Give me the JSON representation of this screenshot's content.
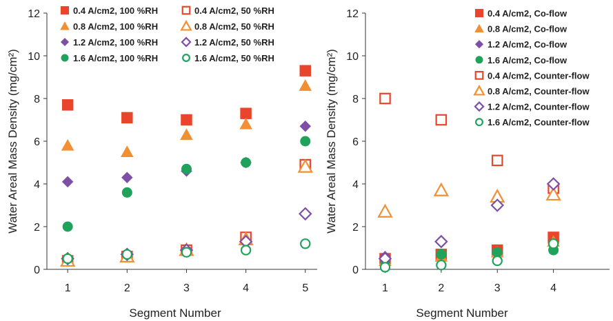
{
  "chart_data": [
    {
      "type": "scatter",
      "xlabel": "Segment Number",
      "ylabel": "Water Areal Mass Density (mg/cm²)",
      "xlim": [
        0.65,
        5.2
      ],
      "ylim": [
        0,
        12
      ],
      "xticks": [
        "1",
        "2",
        "3",
        "4",
        "5"
      ],
      "yticks": [
        "0",
        "2",
        "4",
        "6",
        "8",
        "10",
        "12"
      ],
      "legend_position": "top",
      "series": [
        {
          "name": "0.4 A/cm2, 100 %RH",
          "marker": "square",
          "filled": true,
          "color": "#e8452c",
          "x": [
            1,
            2,
            3,
            4,
            5
          ],
          "y": [
            7.7,
            7.1,
            7.0,
            7.3,
            9.3
          ]
        },
        {
          "name": "0.4 A/cm2, 50 %RH",
          "marker": "square",
          "filled": false,
          "color": "#e8452c",
          "x": [
            1,
            2,
            3,
            4,
            5
          ],
          "y": [
            0.4,
            0.6,
            0.9,
            1.5,
            4.9
          ]
        },
        {
          "name": "0.8 A/cm2, 100 %RH",
          "marker": "triangle",
          "filled": true,
          "color": "#f28f33",
          "x": [
            1,
            2,
            3,
            4,
            5
          ],
          "y": [
            5.8,
            5.5,
            6.3,
            6.8,
            8.6
          ]
        },
        {
          "name": "0.8 A/cm2, 50 %RH",
          "marker": "triangle",
          "filled": false,
          "color": "#f28f33",
          "x": [
            1,
            2,
            3,
            4,
            5
          ],
          "y": [
            0.4,
            0.6,
            0.9,
            1.4,
            4.8
          ]
        },
        {
          "name": "1.2 A/cm2, 100 %RH",
          "marker": "diamond",
          "filled": true,
          "color": "#7d4fa6",
          "x": [
            1,
            2,
            3,
            4,
            5
          ],
          "y": [
            4.1,
            4.3,
            4.6,
            5.0,
            6.7
          ]
        },
        {
          "name": "1.2 A/cm2, 50 %RH",
          "marker": "diamond",
          "filled": false,
          "color": "#7d4fa6",
          "x": [
            1,
            2,
            3,
            4,
            5
          ],
          "y": [
            0.5,
            0.7,
            0.9,
            1.3,
            2.6
          ]
        },
        {
          "name": "1.6 A/cm2, 100 %RH",
          "marker": "circle",
          "filled": true,
          "color": "#1fa35c",
          "x": [
            1,
            2,
            3,
            4,
            5
          ],
          "y": [
            2.0,
            3.6,
            4.7,
            5.0,
            6.0
          ]
        },
        {
          "name": "1.6 A/cm2, 50 %RH",
          "marker": "circle",
          "filled": false,
          "color": "#1fa35c",
          "x": [
            1,
            2,
            3,
            4,
            5
          ],
          "y": [
            0.5,
            0.7,
            0.8,
            0.9,
            1.2
          ]
        }
      ]
    },
    {
      "type": "scatter",
      "xlabel": "Segment Number",
      "ylabel": "Water Areal Mass Density (mg/cm²)",
      "xlim": [
        0.65,
        5.0
      ],
      "ylim": [
        0,
        12
      ],
      "xticks": [
        "1",
        "2",
        "3",
        "4"
      ],
      "yticks": [
        "0",
        "2",
        "4",
        "6",
        "8",
        "10",
        "12"
      ],
      "legend_position": "top-right",
      "series": [
        {
          "name": "0.4 A/cm2, Co-flow",
          "marker": "square",
          "filled": true,
          "color": "#e8452c",
          "x": [
            1,
            2,
            3,
            4
          ],
          "y": [
            0.5,
            0.7,
            0.9,
            1.5
          ]
        },
        {
          "name": "0.8 A/cm2, Co-flow",
          "marker": "triangle",
          "filled": true,
          "color": "#f28f33",
          "x": [
            1,
            2,
            3,
            4
          ],
          "y": [
            0.4,
            0.6,
            0.8,
            1.3
          ]
        },
        {
          "name": "1.2 A/cm2, Co-flow",
          "marker": "diamond",
          "filled": true,
          "color": "#7d4fa6",
          "x": [
            1,
            2,
            3,
            4
          ],
          "y": [
            0.6,
            0.7,
            0.8,
            1.2
          ]
        },
        {
          "name": "1.6 A/cm2, Co-flow",
          "marker": "circle",
          "filled": true,
          "color": "#1fa35c",
          "x": [
            1,
            2,
            3,
            4
          ],
          "y": [
            0.4,
            0.7,
            0.8,
            0.9
          ]
        },
        {
          "name": "0.4 A/cm2, Counter-flow",
          "marker": "square",
          "filled": false,
          "color": "#e8452c",
          "x": [
            1,
            2,
            3,
            4
          ],
          "y": [
            8.0,
            7.0,
            5.1,
            3.8
          ]
        },
        {
          "name": "0.8 A/cm2, Counter-flow",
          "marker": "triangle",
          "filled": false,
          "color": "#f28f33",
          "x": [
            1,
            2,
            3,
            4
          ],
          "y": [
            2.7,
            3.7,
            3.4,
            3.5
          ]
        },
        {
          "name": "1.2 A/cm2, Counter-flow",
          "marker": "diamond",
          "filled": false,
          "color": "#7d4fa6",
          "x": [
            1,
            2,
            3,
            4
          ],
          "y": [
            0.5,
            1.3,
            3.0,
            4.0
          ]
        },
        {
          "name": "1.6 A/cm2, Counter-flow",
          "marker": "circle",
          "filled": false,
          "color": "#1fa35c",
          "x": [
            1,
            2,
            3,
            4
          ],
          "y": [
            0.1,
            0.2,
            0.4,
            1.2
          ]
        }
      ]
    }
  ]
}
